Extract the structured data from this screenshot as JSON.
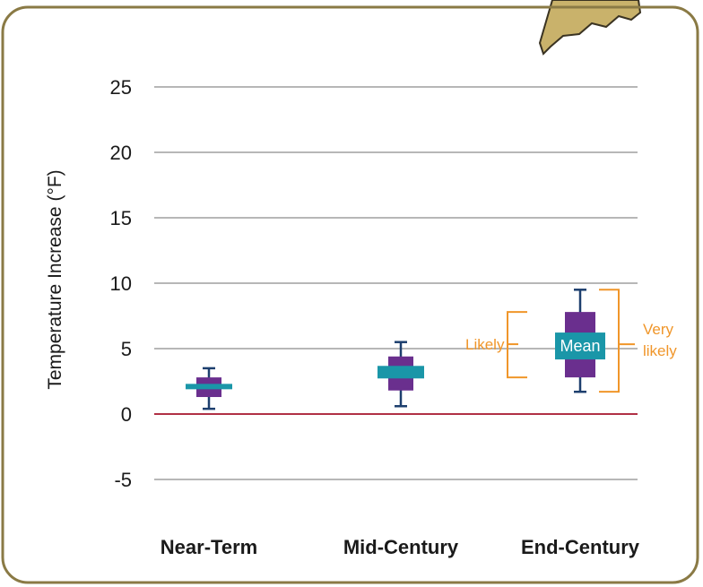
{
  "chart_data": {
    "type": "box",
    "title": "",
    "xlabel": "",
    "ylabel": "Temperature Increase (°F)",
    "ylim": [
      -5,
      25
    ],
    "yticks": [
      -5,
      0,
      5,
      10,
      15,
      20,
      25
    ],
    "grid": true,
    "categories": [
      "Near-Term",
      "Mid-Century",
      "End-Century"
    ],
    "boxes": [
      {
        "category": "Near-Term",
        "very_likely_low": 0.4,
        "likely_low": 1.3,
        "mean": 2.1,
        "likely_high": 2.8,
        "very_likely_high": 3.5
      },
      {
        "category": "Mid-Century",
        "very_likely_low": 0.6,
        "likely_low": 1.8,
        "mean": 3.2,
        "likely_high": 4.4,
        "very_likely_high": 5.5
      },
      {
        "category": "End-Century",
        "very_likely_low": 1.7,
        "likely_low": 2.8,
        "mean": 5.2,
        "likely_high": 7.8,
        "very_likely_high": 9.5
      }
    ],
    "annotations": {
      "likely": "Likely",
      "very_likely_line1": "Very",
      "very_likely_line2": "likely",
      "mean": "Mean"
    },
    "colors": {
      "frame": "#8a7a45",
      "grid": "#8c8c8c",
      "zero_line": "#b03045",
      "box": "#6a2f8e",
      "mean": "#1a96a8",
      "whisker": "#1d3f6e",
      "annotation": "#f0962a",
      "map": "#c9b26b"
    }
  }
}
